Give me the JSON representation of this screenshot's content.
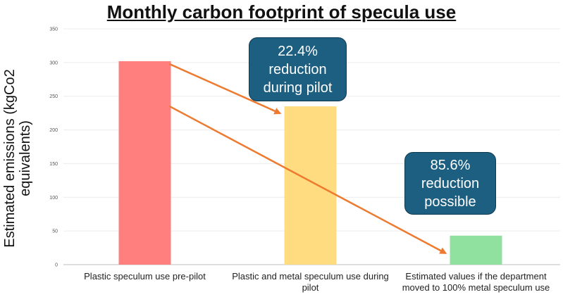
{
  "chart_data": {
    "type": "bar",
    "title": "Monthly carbon footprint of specula use",
    "ylabel": "Estimated emissions (kgCo2 equivalents)",
    "xlabel": "",
    "ylim": [
      0,
      350
    ],
    "yticks": [
      0,
      50,
      100,
      150,
      200,
      250,
      300,
      350
    ],
    "grid": true,
    "categories": [
      "Plastic speculum use pre-pilot",
      "Plastic and metal speculum use during pilot",
      "Estimated values if the department moved to 100% metal speculum use"
    ],
    "values": [
      302,
      235,
      43
    ],
    "colors": [
      "#ff7f7f",
      "#ffdc80",
      "#90e0a0"
    ],
    "annotations": [
      {
        "text": "22.4%\nreduction\nduring pilot",
        "from": 0,
        "to": 1
      },
      {
        "text": "85.6%\nreduction\npossible",
        "from": 0,
        "to": 2
      }
    ],
    "arrow_color": "#ee7a30"
  }
}
